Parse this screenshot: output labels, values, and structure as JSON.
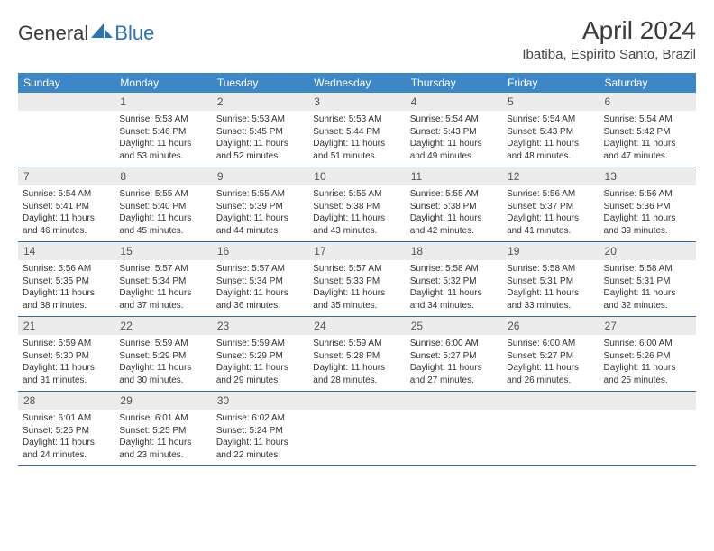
{
  "brand": {
    "text_general": "General",
    "text_blue": "Blue",
    "icon_color": "#2d71b8"
  },
  "title": "April 2024",
  "location": "Ibatiba, Espirito Santo, Brazil",
  "day_headers": [
    "Sunday",
    "Monday",
    "Tuesday",
    "Wednesday",
    "Thursday",
    "Friday",
    "Saturday"
  ],
  "colors": {
    "header_bg": "#3c87c7",
    "header_text": "#ffffff",
    "daynum_bg": "#ececec",
    "daynum_text": "#555555",
    "divider": "#2d6aa8",
    "body_text": "#333333"
  },
  "fonts": {
    "title_size": 28,
    "location_size": 15,
    "header_size": 12,
    "daynum_size": 12,
    "content_size": 10
  },
  "weeks": [
    [
      {
        "num": "",
        "sunrise": "",
        "sunset": "",
        "daylight": ""
      },
      {
        "num": "1",
        "sunrise": "Sunrise: 5:53 AM",
        "sunset": "Sunset: 5:46 PM",
        "daylight": "Daylight: 11 hours and 53 minutes."
      },
      {
        "num": "2",
        "sunrise": "Sunrise: 5:53 AM",
        "sunset": "Sunset: 5:45 PM",
        "daylight": "Daylight: 11 hours and 52 minutes."
      },
      {
        "num": "3",
        "sunrise": "Sunrise: 5:53 AM",
        "sunset": "Sunset: 5:44 PM",
        "daylight": "Daylight: 11 hours and 51 minutes."
      },
      {
        "num": "4",
        "sunrise": "Sunrise: 5:54 AM",
        "sunset": "Sunset: 5:43 PM",
        "daylight": "Daylight: 11 hours and 49 minutes."
      },
      {
        "num": "5",
        "sunrise": "Sunrise: 5:54 AM",
        "sunset": "Sunset: 5:43 PM",
        "daylight": "Daylight: 11 hours and 48 minutes."
      },
      {
        "num": "6",
        "sunrise": "Sunrise: 5:54 AM",
        "sunset": "Sunset: 5:42 PM",
        "daylight": "Daylight: 11 hours and 47 minutes."
      }
    ],
    [
      {
        "num": "7",
        "sunrise": "Sunrise: 5:54 AM",
        "sunset": "Sunset: 5:41 PM",
        "daylight": "Daylight: 11 hours and 46 minutes."
      },
      {
        "num": "8",
        "sunrise": "Sunrise: 5:55 AM",
        "sunset": "Sunset: 5:40 PM",
        "daylight": "Daylight: 11 hours and 45 minutes."
      },
      {
        "num": "9",
        "sunrise": "Sunrise: 5:55 AM",
        "sunset": "Sunset: 5:39 PM",
        "daylight": "Daylight: 11 hours and 44 minutes."
      },
      {
        "num": "10",
        "sunrise": "Sunrise: 5:55 AM",
        "sunset": "Sunset: 5:38 PM",
        "daylight": "Daylight: 11 hours and 43 minutes."
      },
      {
        "num": "11",
        "sunrise": "Sunrise: 5:55 AM",
        "sunset": "Sunset: 5:38 PM",
        "daylight": "Daylight: 11 hours and 42 minutes."
      },
      {
        "num": "12",
        "sunrise": "Sunrise: 5:56 AM",
        "sunset": "Sunset: 5:37 PM",
        "daylight": "Daylight: 11 hours and 41 minutes."
      },
      {
        "num": "13",
        "sunrise": "Sunrise: 5:56 AM",
        "sunset": "Sunset: 5:36 PM",
        "daylight": "Daylight: 11 hours and 39 minutes."
      }
    ],
    [
      {
        "num": "14",
        "sunrise": "Sunrise: 5:56 AM",
        "sunset": "Sunset: 5:35 PM",
        "daylight": "Daylight: 11 hours and 38 minutes."
      },
      {
        "num": "15",
        "sunrise": "Sunrise: 5:57 AM",
        "sunset": "Sunset: 5:34 PM",
        "daylight": "Daylight: 11 hours and 37 minutes."
      },
      {
        "num": "16",
        "sunrise": "Sunrise: 5:57 AM",
        "sunset": "Sunset: 5:34 PM",
        "daylight": "Daylight: 11 hours and 36 minutes."
      },
      {
        "num": "17",
        "sunrise": "Sunrise: 5:57 AM",
        "sunset": "Sunset: 5:33 PM",
        "daylight": "Daylight: 11 hours and 35 minutes."
      },
      {
        "num": "18",
        "sunrise": "Sunrise: 5:58 AM",
        "sunset": "Sunset: 5:32 PM",
        "daylight": "Daylight: 11 hours and 34 minutes."
      },
      {
        "num": "19",
        "sunrise": "Sunrise: 5:58 AM",
        "sunset": "Sunset: 5:31 PM",
        "daylight": "Daylight: 11 hours and 33 minutes."
      },
      {
        "num": "20",
        "sunrise": "Sunrise: 5:58 AM",
        "sunset": "Sunset: 5:31 PM",
        "daylight": "Daylight: 11 hours and 32 minutes."
      }
    ],
    [
      {
        "num": "21",
        "sunrise": "Sunrise: 5:59 AM",
        "sunset": "Sunset: 5:30 PM",
        "daylight": "Daylight: 11 hours and 31 minutes."
      },
      {
        "num": "22",
        "sunrise": "Sunrise: 5:59 AM",
        "sunset": "Sunset: 5:29 PM",
        "daylight": "Daylight: 11 hours and 30 minutes."
      },
      {
        "num": "23",
        "sunrise": "Sunrise: 5:59 AM",
        "sunset": "Sunset: 5:29 PM",
        "daylight": "Daylight: 11 hours and 29 minutes."
      },
      {
        "num": "24",
        "sunrise": "Sunrise: 5:59 AM",
        "sunset": "Sunset: 5:28 PM",
        "daylight": "Daylight: 11 hours and 28 minutes."
      },
      {
        "num": "25",
        "sunrise": "Sunrise: 6:00 AM",
        "sunset": "Sunset: 5:27 PM",
        "daylight": "Daylight: 11 hours and 27 minutes."
      },
      {
        "num": "26",
        "sunrise": "Sunrise: 6:00 AM",
        "sunset": "Sunset: 5:27 PM",
        "daylight": "Daylight: 11 hours and 26 minutes."
      },
      {
        "num": "27",
        "sunrise": "Sunrise: 6:00 AM",
        "sunset": "Sunset: 5:26 PM",
        "daylight": "Daylight: 11 hours and 25 minutes."
      }
    ],
    [
      {
        "num": "28",
        "sunrise": "Sunrise: 6:01 AM",
        "sunset": "Sunset: 5:25 PM",
        "daylight": "Daylight: 11 hours and 24 minutes."
      },
      {
        "num": "29",
        "sunrise": "Sunrise: 6:01 AM",
        "sunset": "Sunset: 5:25 PM",
        "daylight": "Daylight: 11 hours and 23 minutes."
      },
      {
        "num": "30",
        "sunrise": "Sunrise: 6:02 AM",
        "sunset": "Sunset: 5:24 PM",
        "daylight": "Daylight: 11 hours and 22 minutes."
      },
      {
        "num": "",
        "sunrise": "",
        "sunset": "",
        "daylight": ""
      },
      {
        "num": "",
        "sunrise": "",
        "sunset": "",
        "daylight": ""
      },
      {
        "num": "",
        "sunrise": "",
        "sunset": "",
        "daylight": ""
      },
      {
        "num": "",
        "sunrise": "",
        "sunset": "",
        "daylight": ""
      }
    ]
  ]
}
